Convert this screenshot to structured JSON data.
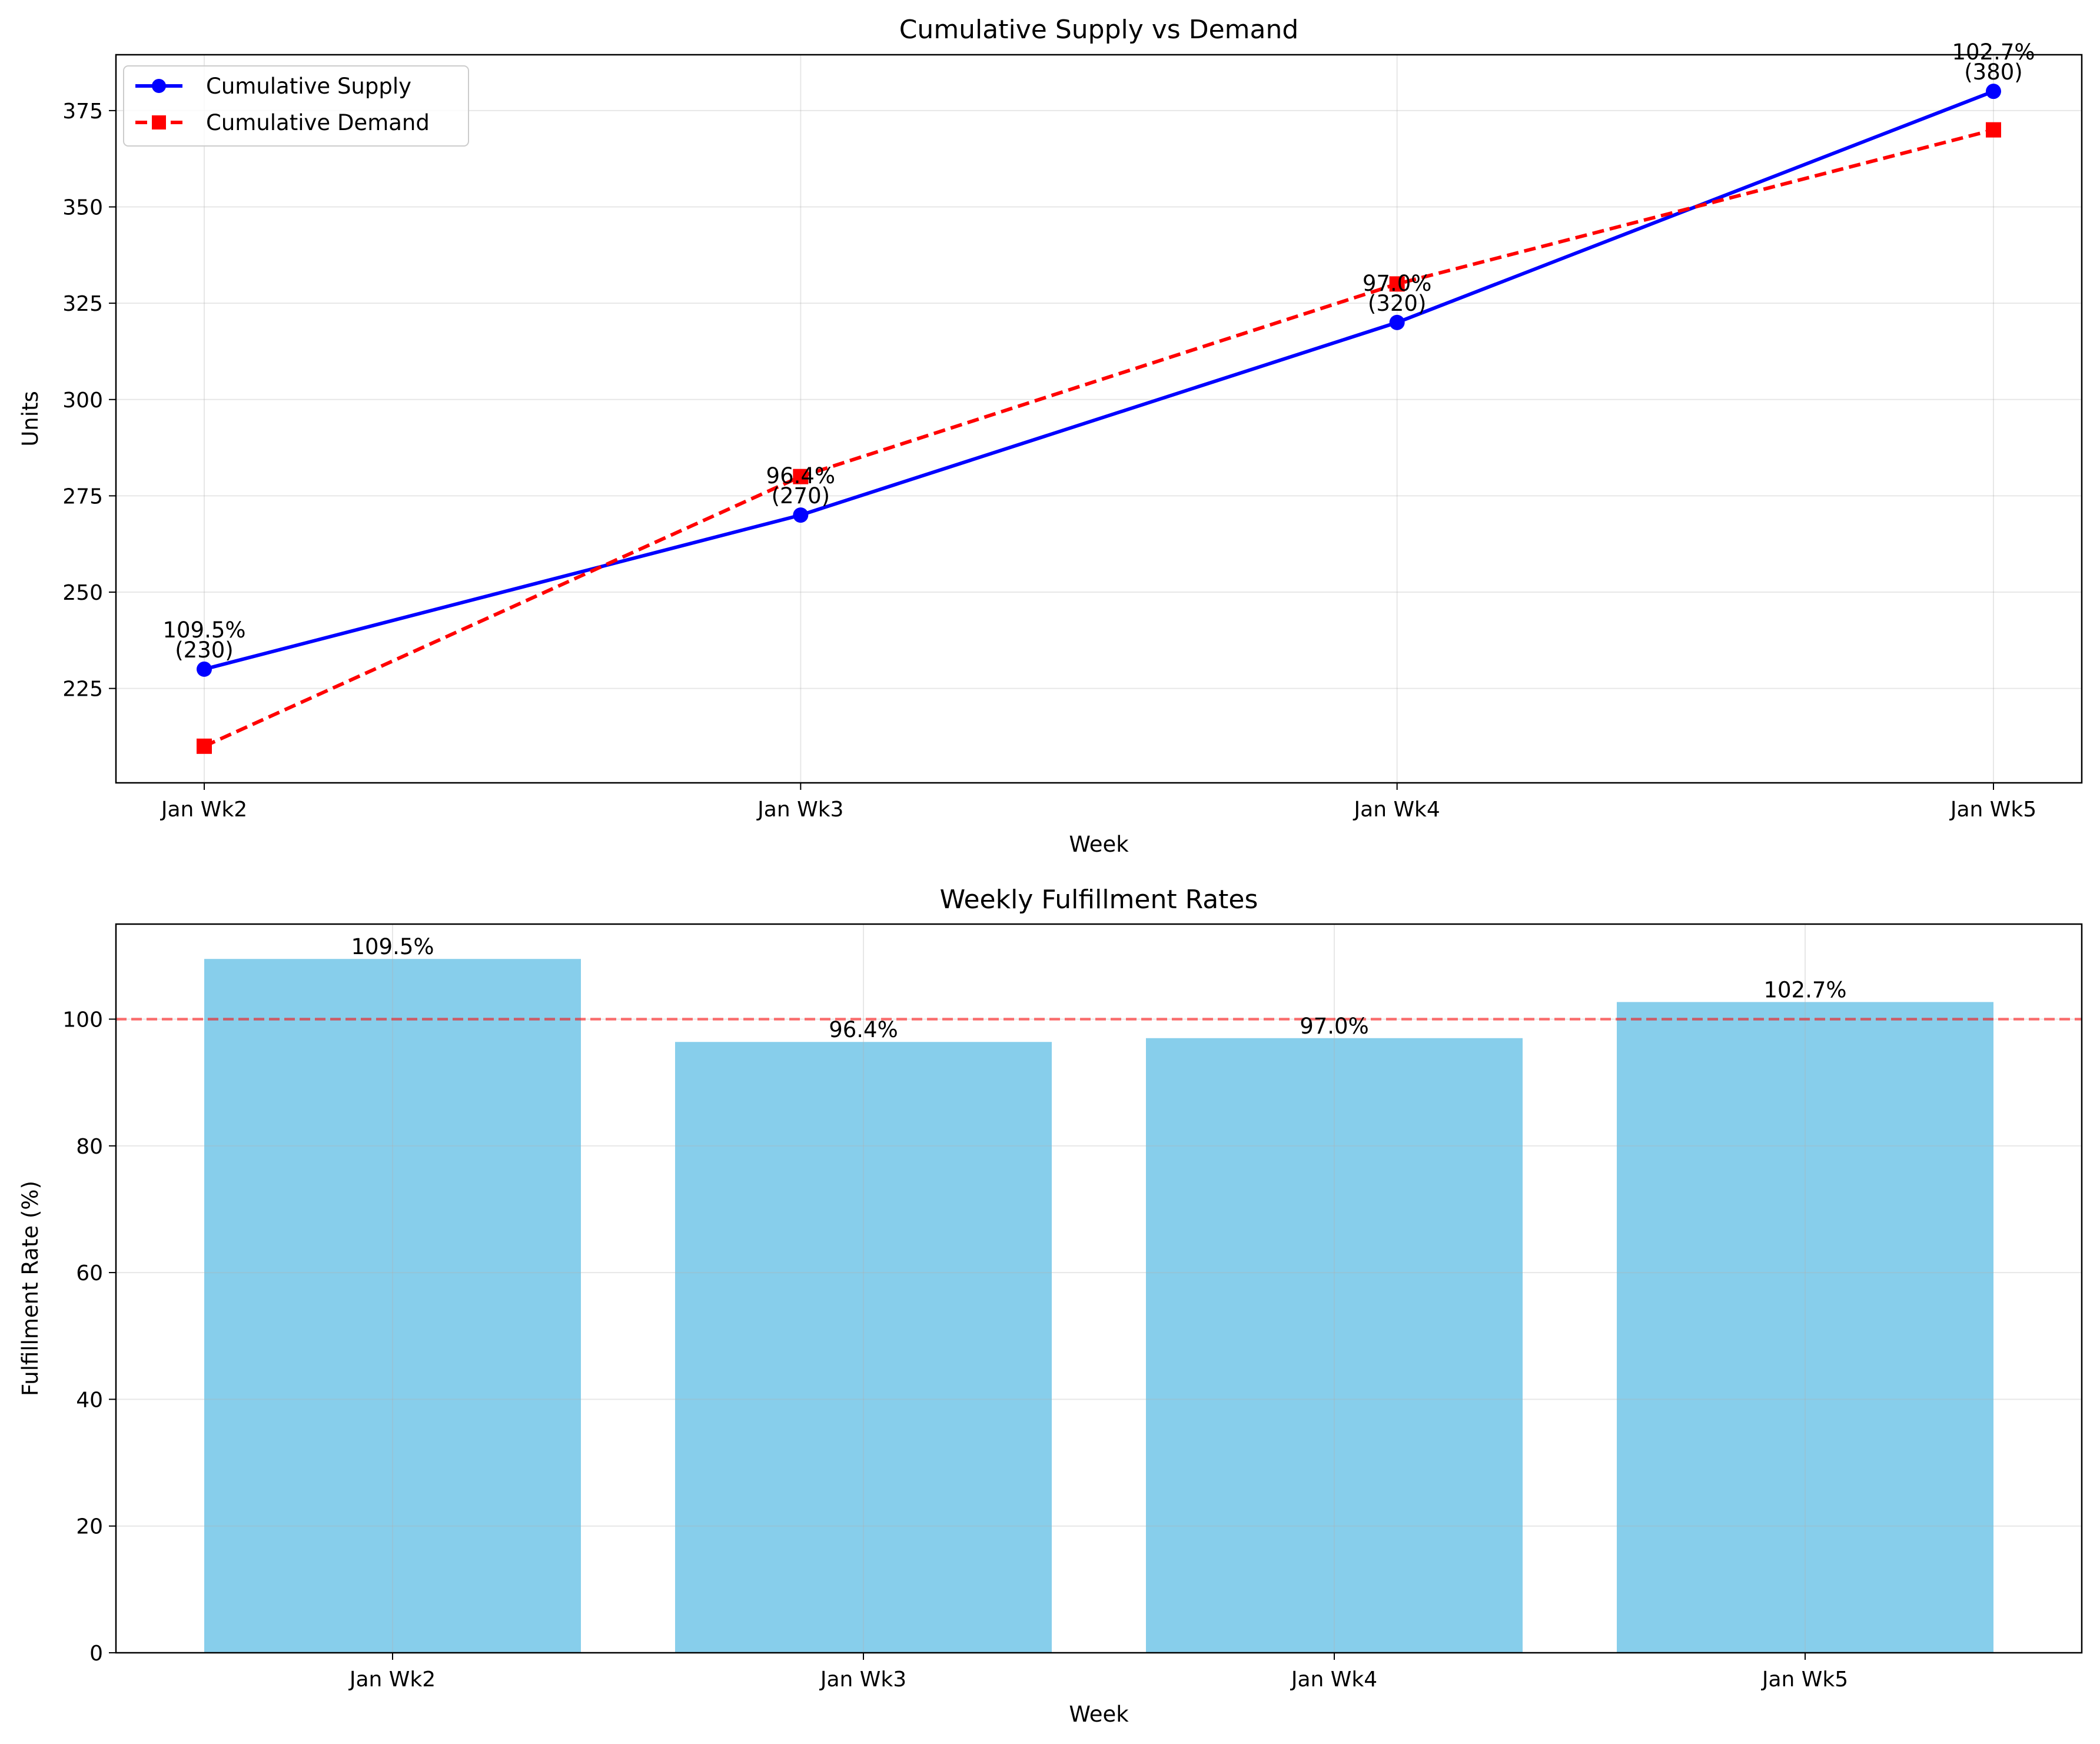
{
  "chart_data": [
    {
      "type": "line",
      "title": "Cumulative Supply vs Demand",
      "xlabel": "Week",
      "ylabel": "Units",
      "categories": [
        "Jan Wk2",
        "Jan Wk3",
        "Jan Wk4",
        "Jan Wk5"
      ],
      "ylim": [
        200.5,
        389.5
      ],
      "yticks": [
        225,
        250,
        275,
        300,
        325,
        350,
        375
      ],
      "grid": true,
      "legend_placement": "top-left",
      "series": [
        {
          "name": "Cumulative Supply",
          "values": [
            230,
            270,
            320,
            380
          ],
          "color": "#0000ff",
          "marker": "circle",
          "line_style": "solid"
        },
        {
          "name": "Cumulative Demand",
          "values": [
            210,
            280,
            330,
            370
          ],
          "color": "#ff0000",
          "marker": "square",
          "line_style": "dashed"
        }
      ],
      "annotations": [
        {
          "category": "Jan Wk2",
          "y": 230,
          "lines": [
            "109.5%",
            "(230)"
          ]
        },
        {
          "category": "Jan Wk3",
          "y": 270,
          "lines": [
            "96.4%",
            "(270)"
          ]
        },
        {
          "category": "Jan Wk4",
          "y": 320,
          "lines": [
            "97.0%",
            "(320)"
          ]
        },
        {
          "category": "Jan Wk5",
          "y": 380,
          "lines": [
            "102.7%",
            "(380)"
          ]
        }
      ]
    },
    {
      "type": "bar",
      "title": "Weekly Fulfillment Rates",
      "xlabel": "Week",
      "ylabel": "Fulfillment Rate (%)",
      "categories": [
        "Jan Wk2",
        "Jan Wk3",
        "Jan Wk4",
        "Jan Wk5"
      ],
      "values": [
        109.5,
        96.4,
        97.0,
        102.7
      ],
      "value_labels": [
        "109.5%",
        "96.4%",
        "97.0%",
        "102.7%"
      ],
      "bar_color": "#87ceeb",
      "ylim": [
        0,
        115
      ],
      "yticks": [
        0,
        20,
        40,
        60,
        80,
        100
      ],
      "reference_line": {
        "y": 100,
        "color": "#ff0000",
        "style": "dashed"
      },
      "grid": true
    }
  ]
}
